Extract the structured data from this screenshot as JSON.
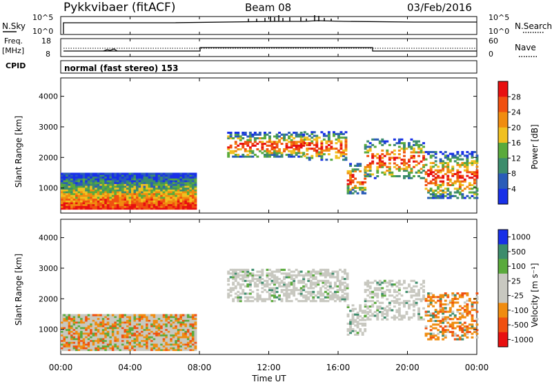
{
  "header": {
    "station": "Pykkvibaer (fitACF)",
    "beam": "Beam 08",
    "date": "03/Feb/2016"
  },
  "noise_panel": {
    "left_label": "N.Sky",
    "right_label": "N.Search",
    "left_ticks": [
      "10^5",
      "10^0"
    ],
    "right_ticks": [
      "10^5",
      "10^0"
    ]
  },
  "freq_panel": {
    "left_label_1": "Freq.",
    "left_label_2": "[MHz]",
    "right_label": "Nave",
    "left_ticks": [
      "18",
      "8"
    ],
    "right_ticks": [
      "60",
      "0"
    ]
  },
  "cpid": {
    "label": "CPID",
    "mode": "normal (fast stereo) 153"
  },
  "x_axis": {
    "ticks": [
      "00:00",
      "04:00",
      "08:00",
      "12:00",
      "16:00",
      "20:00",
      "00:00"
    ],
    "label": "Time UT"
  },
  "colors": {
    "power": [
      "#1830e8",
      "#2a5cb8",
      "#3c8c6c",
      "#5aaa3c",
      "#f0c020",
      "#f08c10",
      "#f05010",
      "#e81010"
    ],
    "velocity": [
      "#e81010",
      "#f05010",
      "#f08c10",
      "#c8c8c0",
      "#c8c8c0",
      "#5aaa3c",
      "#3c8c6c",
      "#1830e8"
    ],
    "grey": "#c8c8c0"
  },
  "chart_data": [
    {
      "type": "heatmap",
      "ylabel": "Slant Range [km]",
      "yticks": [
        "4000",
        "3000",
        "2000",
        "1000"
      ],
      "ylim": [
        180,
        4600
      ],
      "colorbar_label": "Power [dB]",
      "colorbar_ticks": [
        "28",
        "24",
        "20",
        "16",
        "12",
        "8",
        "4"
      ],
      "colorbar_range": [
        0,
        32
      ],
      "regions": [
        {
          "t": [
            0,
            7.8
          ],
          "r": [
            300,
            1450
          ],
          "fill": 1
        },
        {
          "t": [
            9.6,
            14
          ],
          "r": [
            2000,
            2800
          ],
          "fill": 0.55
        },
        {
          "t": [
            14,
            16.5
          ],
          "r": [
            1900,
            2850
          ],
          "fill": 0.45
        },
        {
          "t": [
            16.5,
            17.5
          ],
          "r": [
            800,
            1800
          ],
          "fill": 0.5
        },
        {
          "t": [
            17.5,
            21
          ],
          "r": [
            1300,
            2600
          ],
          "fill": 0.4
        },
        {
          "t": [
            21,
            24
          ],
          "r": [
            650,
            2200
          ],
          "fill": 0.5
        }
      ]
    },
    {
      "type": "heatmap",
      "ylabel": "Slant Range [km]",
      "yticks": [
        "4000",
        "3000",
        "2000",
        "1000"
      ],
      "ylim": [
        180,
        4600
      ],
      "colorbar_label": "Velocity [m s⁻¹]",
      "colorbar_ticks": [
        "1000",
        "500",
        "100",
        "25",
        "-25",
        "-100",
        "-500",
        "-1000"
      ],
      "regions": [
        {
          "t": [
            0,
            7.8
          ],
          "r": [
            300,
            1450
          ],
          "fill": 1
        },
        {
          "t": [
            9.6,
            16.5
          ],
          "r": [
            1900,
            2950
          ],
          "fill": 0.55
        },
        {
          "t": [
            16.5,
            17.5
          ],
          "r": [
            800,
            1800
          ],
          "fill": 0.5
        },
        {
          "t": [
            17.5,
            21
          ],
          "r": [
            1300,
            2600
          ],
          "fill": 0.4
        },
        {
          "t": [
            21,
            24
          ],
          "r": [
            650,
            2200
          ],
          "fill": 0.5
        }
      ]
    }
  ]
}
